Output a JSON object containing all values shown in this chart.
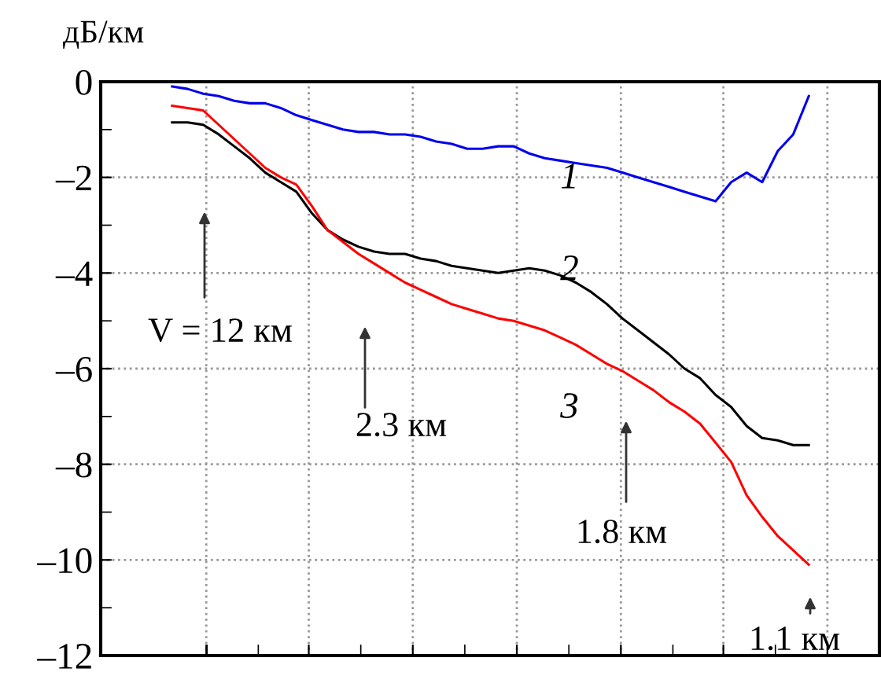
{
  "chart_data": {
    "type": "line",
    "ylabel": "дБ/км",
    "categories": [
      null,
      null,
      null,
      null,
      null,
      null,
      null,
      null,
      null,
      null,
      null,
      null,
      null,
      null,
      null,
      null,
      null,
      null,
      null,
      null,
      null,
      null,
      null,
      null,
      null,
      null,
      null,
      null,
      null,
      null,
      null,
      null,
      null,
      null,
      null,
      null,
      null,
      null,
      null,
      null,
      null,
      null
    ],
    "series": [
      {
        "name": "1",
        "color": "#0000ee",
        "values": [
          -0.1,
          -0.15,
          -0.25,
          -0.3,
          -0.4,
          -0.45,
          -0.45,
          -0.55,
          -0.7,
          -0.8,
          -0.9,
          -1.0,
          -1.05,
          -1.05,
          -1.1,
          -1.1,
          -1.15,
          -1.25,
          -1.3,
          -1.4,
          -1.4,
          -1.35,
          -1.35,
          -1.5,
          -1.6,
          -1.65,
          -1.7,
          -1.75,
          -1.8,
          -1.9,
          -2.0,
          -2.1,
          -2.2,
          -2.3,
          -2.4,
          -2.5,
          -2.1,
          -1.9,
          -2.1,
          -1.45,
          -1.1,
          -0.3
        ]
      },
      {
        "name": "2",
        "color": "#000000",
        "values": [
          -0.85,
          -0.85,
          -0.9,
          -1.1,
          -1.35,
          -1.6,
          -1.9,
          -2.1,
          -2.3,
          -2.75,
          -3.1,
          -3.3,
          -3.45,
          -3.55,
          -3.6,
          -3.6,
          -3.7,
          -3.75,
          -3.85,
          -3.9,
          -3.95,
          -4.0,
          -3.95,
          -3.9,
          -3.95,
          -4.05,
          -4.2,
          -4.4,
          -4.65,
          -4.95,
          -5.2,
          -5.45,
          -5.7,
          -6.0,
          -6.2,
          -6.55,
          -6.8,
          -7.2,
          -7.45,
          -7.5,
          -7.6,
          -7.6
        ]
      },
      {
        "name": "3",
        "color": "#ff0000",
        "values": [
          -0.5,
          -0.55,
          -0.6,
          -0.9,
          -1.2,
          -1.5,
          -1.8,
          -2.0,
          -2.15,
          -2.6,
          -3.1,
          -3.35,
          -3.6,
          -3.8,
          -4.0,
          -4.2,
          -4.35,
          -4.5,
          -4.65,
          -4.75,
          -4.85,
          -4.95,
          -5.0,
          -5.1,
          -5.2,
          -5.35,
          -5.5,
          -5.7,
          -5.9,
          -6.05,
          -6.25,
          -6.45,
          -6.7,
          -6.9,
          -7.15,
          -7.55,
          -7.95,
          -8.65,
          -9.1,
          -9.5,
          -9.8,
          -10.1
        ]
      }
    ],
    "ylim": [
      -12,
      0
    ],
    "yticks": [
      0,
      {
        "value": -2,
        "label": "–2"
      },
      {
        "value": -4,
        "label": "–4"
      },
      {
        "value": -6,
        "label": "–6"
      },
      {
        "value": -8,
        "label": "–8"
      },
      {
        "value": -10,
        "label": "–10"
      },
      {
        "value": -12,
        "label": "–12"
      }
    ],
    "grid": true,
    "line_style": "solid",
    "marker": "none",
    "annotations": [
      "V = 12 км",
      "2.3 км",
      "1.8 км",
      "1.1 км"
    ]
  }
}
